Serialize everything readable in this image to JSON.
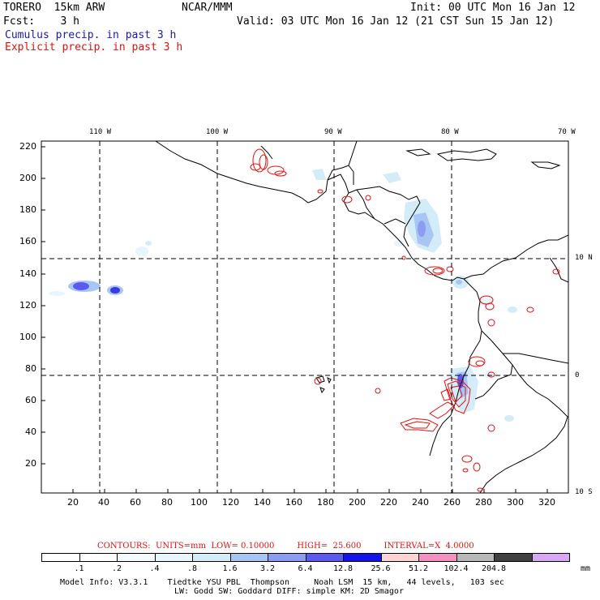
{
  "header": {
    "model_name": "TORERO  15km ARW",
    "center": "NCAR/MMM",
    "init": "Init: 00 UTC Mon 16 Jan 12",
    "fcst": "Fcst:    3 h",
    "valid": "Valid: 03 UTC Mon 16 Jan 12 (21 CST Sun 15 Jan 12)",
    "legend_cumulus": "Cumulus precip. in past 3 h",
    "legend_explicit": "Explicit precip. in past 3 h"
  },
  "colors": {
    "cumulus_text": "#1a1aa8",
    "explicit_text": "#e01010",
    "contour": "#e01010",
    "coastline": "#000000"
  },
  "map": {
    "lon_labels": [
      "110 W",
      "100 W",
      "90 W",
      "80 W",
      "70 W"
    ],
    "lat_labels": [
      "10 N",
      "0",
      "10 S"
    ],
    "y_ticks": [
      "220",
      "200",
      "180",
      "160",
      "140",
      "120",
      "100",
      "80",
      "60",
      "40",
      "20"
    ],
    "x_ticks": [
      "20",
      "40",
      "60",
      "80",
      "100",
      "120",
      "140",
      "160",
      "180",
      "200",
      "220",
      "240",
      "260",
      "280",
      "300",
      "320"
    ]
  },
  "colorbar": {
    "contours_label": "CONTOURS:  UNITS=mm  LOW= 0.10000",
    "high_label": "HIGH=  25.600",
    "interval_label": "INTERVAL=X  4.0000",
    "levels": [
      ".1",
      ".2",
      ".4",
      ".8",
      "1.6",
      "3.2",
      "6.4",
      "12.8",
      "25.6",
      "51.2",
      "102.4",
      "204.8"
    ],
    "unit": "mm",
    "colors": [
      "#ffffff",
      "#ffffff",
      "#f4fbfd",
      "#e6f6fa",
      "#d4ecf8",
      "#a8c6f4",
      "#8c9cf0",
      "#5a5af0",
      "#1414e8",
      "#fcd4d4",
      "#f490c0",
      "#b8b8b8",
      "#404040",
      "#d8a8f4"
    ]
  },
  "footer": {
    "line1": "Model Info: V3.3.1    Tiedtke YSU PBL  Thompson     Noah LSM  15 km,   44 levels,   103 sec",
    "line2": "LW: Godd SW: Goddard DIFF: simple KM: 2D Smagor"
  }
}
